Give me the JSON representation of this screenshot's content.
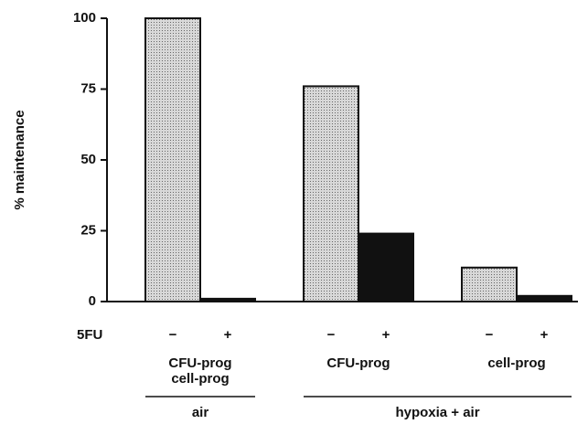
{
  "chart_data": {
    "type": "bar",
    "y_label": "% maintenance",
    "x_label": "5FU",
    "categories": [
      "−",
      "+",
      "−",
      "+",
      "−",
      "+"
    ],
    "values": [
      100,
      1,
      76,
      24,
      12,
      2
    ],
    "colors": [
      "#c4c4c4",
      "#111111",
      "#c4c4c4",
      "#111111",
      "#c4c4c4",
      "#111111"
    ],
    "groups": [
      {
        "lines": [
          "CFU-prog",
          "cell-prog"
        ]
      },
      {
        "lines": [
          "CFU-prog"
        ]
      },
      {
        "lines": [
          "cell-prog"
        ]
      }
    ],
    "conditions": [
      "air",
      "hypoxia + air"
    ],
    "ylim": [
      0,
      100
    ],
    "yticks": [
      0,
      25,
      50,
      75,
      100
    ],
    "grid": false
  }
}
